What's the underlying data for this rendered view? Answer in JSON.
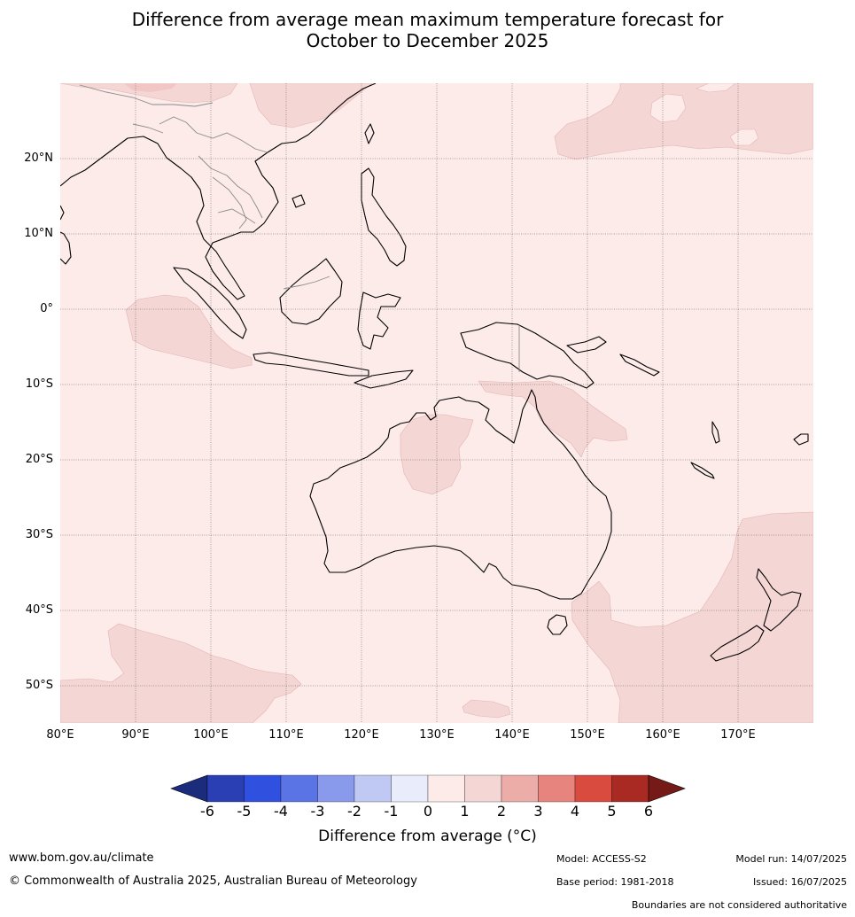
{
  "title": {
    "line1": "Difference from average mean maximum temperature forecast for",
    "line2": "October to December 2025"
  },
  "map": {
    "lat_labels": [
      "20°N",
      "10°N",
      "0°",
      "10°S",
      "20°S",
      "30°S",
      "40°S",
      "50°S"
    ],
    "lon_labels": [
      "80°E",
      "90°E",
      "100°E",
      "110°E",
      "120°E",
      "130°E",
      "140°E",
      "150°E",
      "160°E",
      "170°E"
    ],
    "background_class_color": "#fcebe9",
    "warm_class_color": "#f4d6d5",
    "warmer_class_color": "#f1c6c4"
  },
  "colorbar": {
    "ticks": [
      "-6",
      "-5",
      "-4",
      "-3",
      "-2",
      "-1",
      "0",
      "1",
      "2",
      "3",
      "4",
      "5",
      "6"
    ],
    "low_extend_color": "#1c2c7c",
    "colors": [
      "#2a3fb4",
      "#3050e0",
      "#5a73e5",
      "#8999ec",
      "#c0c8f4",
      "#e9ecfb",
      "#fcebe9",
      "#f4d6d5",
      "#ecaca7",
      "#e6847d",
      "#d94a3f",
      "#a82a22"
    ],
    "high_extend_color": "#751a16",
    "label": "Difference from average (°C)"
  },
  "footer": {
    "website": "www.bom.gov.au/climate",
    "copyright": "© Commonwealth of Australia 2025, Australian Bureau of Meteorology",
    "model": "Model: ACCESS-S2",
    "base_period": "Base period: 1981-2018",
    "model_run": "Model run: 14/07/2025",
    "issued": "Issued: 16/07/2025",
    "disclaimer": "Boundaries are not considered authoritative"
  }
}
